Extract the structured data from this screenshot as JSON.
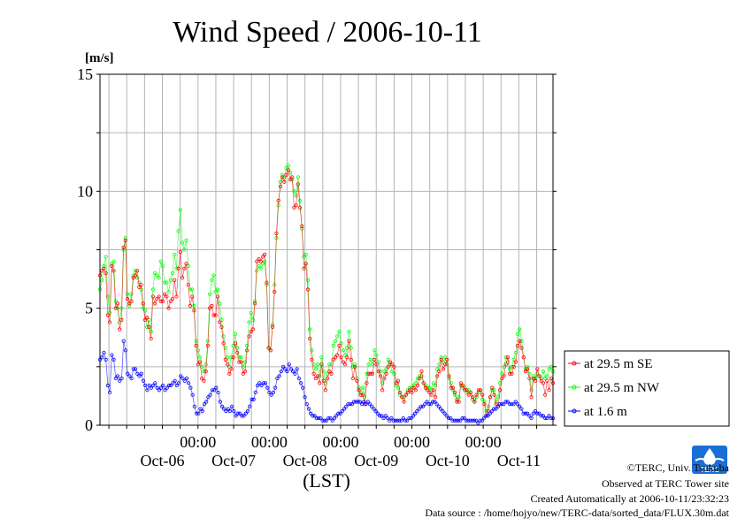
{
  "chart_data": {
    "type": "line",
    "title": "Wind Speed / 2006-10-11",
    "ylabel": "[m/s]",
    "xlabel": "(LST)",
    "ylim": [
      0,
      15
    ],
    "yticks": [
      0,
      5,
      10,
      15
    ],
    "xlim": [
      "2006-10-05 15:00",
      "2006-10-11 23:30"
    ],
    "x_time_labels": [
      "00:00",
      "00:00",
      "00:00",
      "00:00",
      "00:00"
    ],
    "x_day_labels": [
      "Oct-06",
      "Oct-07",
      "Oct-08",
      "Oct-09",
      "Oct-10",
      "Oct-11"
    ],
    "grid": true,
    "legend_position": "right",
    "series": [
      {
        "name": "at 29.5 m SE",
        "color": "#ff0000",
        "values": [
          6.4,
          6.6,
          6.7,
          6.5,
          4.7,
          4.4,
          6.8,
          6.6,
          5.0,
          5.2,
          4.1,
          4.5,
          7.6,
          7.9,
          5.4,
          5.2,
          5.3,
          6.3,
          6.4,
          6.6,
          5.9,
          6.0,
          5.2,
          4.5,
          4.6,
          4.2,
          3.7,
          5.5,
          5.2,
          5.4,
          5.5,
          5.3,
          5.3,
          5.6,
          5.5,
          5.0,
          5.3,
          5.4,
          6.2,
          5.5,
          6.7,
          7.4,
          6.3,
          6.7,
          6.9,
          6.0,
          5.1,
          5.5,
          4.9,
          3.4,
          2.6,
          2.7,
          2.0,
          1.9,
          2.3,
          3.4,
          5.0,
          5.1,
          4.7,
          4.7,
          5.5,
          4.4,
          4.2,
          3.5,
          2.8,
          2.6,
          2.2,
          2.4,
          2.9,
          3.5,
          3.1,
          2.7,
          2.7,
          2.2,
          2.3,
          3.2,
          3.8,
          4.0,
          4.1,
          5.2,
          7.0,
          7.1,
          7.0,
          7.2,
          7.3,
          6.1,
          3.3,
          3.2,
          4.2,
          5.7,
          8.2,
          9.6,
          10.2,
          10.6,
          10.4,
          10.7,
          10.9,
          10.5,
          10.6,
          9.3,
          9.4,
          10.3,
          9.3,
          8.5,
          6.7,
          6.9,
          5.8,
          3.7,
          2.8,
          2.2,
          2.0,
          2.1,
          1.8,
          2.6,
          1.9,
          1.5,
          2.0,
          2.3,
          2.2,
          2.8,
          2.9,
          3.0,
          3.4,
          2.9,
          2.7,
          2.6,
          2.9,
          3.6,
          2.8,
          2.0,
          2.5,
          1.9,
          1.5,
          1.3,
          1.3,
          0.9,
          1.8,
          2.2,
          2.2,
          2.2,
          2.8,
          2.6,
          2.3,
          2.1,
          1.5,
          2.0,
          2.2,
          2.5,
          2.7,
          2.6,
          2.5,
          1.8,
          1.9,
          1.4,
          1.2,
          1.0,
          1.3,
          1.4,
          1.5,
          1.4,
          1.6,
          1.5,
          1.7,
          2.0,
          2.3,
          1.8,
          1.6,
          1.5,
          1.4,
          1.3,
          1.5,
          1.2,
          2.1,
          2.3,
          2.8,
          2.4,
          2.6,
          2.8,
          2.1,
          1.6,
          1.6,
          1.4,
          1.0,
          1.0,
          1.8,
          1.7,
          1.5,
          1.5,
          1.3,
          1.4,
          1.2,
          1.0,
          1.3,
          1.5,
          1.5,
          1.3,
          0.9,
          0.4,
          0.6,
          1.2,
          1.6,
          1.3,
          0.9,
          0.8,
          1.5,
          2.0,
          2.1,
          2.6,
          2.9,
          2.2,
          2.2,
          2.5,
          2.7,
          3.4,
          3.6,
          3.3,
          2.9,
          2.3,
          2.4,
          2.0,
          1.2,
          2.0,
          1.9,
          2.4,
          2.1,
          1.9,
          1.8,
          1.3,
          1.9,
          1.5,
          2.0,
          1.8
        ]
      },
      {
        "name": "at 29.5 m NW",
        "color": "#00ff00",
        "values": [
          5.8,
          6.2,
          6.8,
          7.2,
          5.5,
          4.8,
          6.9,
          7.0,
          5.3,
          5.0,
          4.4,
          5.0,
          7.5,
          8.0,
          5.6,
          5.1,
          5.6,
          6.4,
          6.6,
          6.3,
          6.1,
          5.8,
          5.0,
          4.9,
          4.2,
          4.5,
          4.0,
          5.8,
          6.5,
          6.4,
          6.3,
          7.0,
          6.8,
          6.1,
          6.1,
          5.7,
          6.2,
          6.5,
          7.3,
          6.7,
          8.3,
          9.2,
          7.8,
          7.5,
          7.9,
          6.8,
          5.8,
          5.8,
          5.1,
          3.6,
          3.2,
          2.9,
          2.5,
          2.3,
          2.6,
          3.6,
          5.6,
          6.2,
          6.4,
          5.7,
          5.8,
          5.2,
          4.5,
          3.8,
          3.3,
          2.9,
          2.5,
          2.9,
          3.4,
          3.9,
          3.3,
          2.9,
          2.9,
          2.5,
          2.7,
          3.4,
          4.4,
          4.8,
          4.5,
          5.3,
          6.6,
          6.8,
          6.7,
          6.9,
          7.0,
          6.0,
          3.3,
          3.2,
          4.3,
          6.0,
          8.0,
          9.4,
          10.4,
          10.7,
          10.6,
          11.0,
          11.1,
          10.8,
          10.5,
          10.0,
          9.8,
          10.6,
          9.6,
          8.4,
          7.2,
          7.3,
          6.2,
          4.1,
          3.2,
          2.6,
          2.4,
          2.6,
          2.1,
          2.9,
          2.3,
          1.8,
          2.2,
          2.6,
          2.6,
          3.4,
          3.6,
          3.8,
          4.0,
          3.5,
          3.2,
          3.0,
          3.3,
          4.0,
          3.3,
          2.5,
          2.6,
          2.0,
          1.6,
          1.4,
          1.6,
          1.2,
          2.2,
          2.6,
          2.8,
          2.6,
          3.2,
          3.0,
          2.7,
          2.3,
          1.8,
          2.3,
          2.4,
          2.8,
          2.6,
          2.3,
          2.2,
          1.7,
          1.6,
          1.3,
          1.2,
          1.2,
          1.3,
          1.5,
          1.6,
          1.6,
          1.7,
          1.8,
          2.0,
          2.1,
          2.1,
          1.8,
          1.7,
          1.6,
          1.6,
          1.5,
          1.8,
          1.7,
          2.4,
          2.6,
          2.9,
          2.7,
          2.9,
          2.6,
          2.0,
          1.8,
          1.5,
          1.3,
          1.1,
          1.2,
          1.7,
          1.6,
          1.6,
          1.4,
          1.5,
          1.4,
          1.1,
          1.0,
          1.2,
          1.4,
          1.5,
          1.1,
          1.0,
          0.6,
          0.8,
          1.2,
          1.5,
          1.5,
          1.0,
          1.2,
          1.8,
          2.2,
          2.5,
          2.9,
          2.7,
          2.4,
          2.5,
          2.8,
          3.1,
          3.9,
          4.1,
          3.6,
          2.9,
          2.4,
          2.5,
          2.2,
          1.5,
          2.1,
          2.0,
          2.2,
          2.1,
          2.0,
          2.3,
          2.0,
          2.1,
          2.4,
          2.5,
          2.3
        ]
      },
      {
        "name": "at 1.6 m",
        "color": "#0000ff",
        "values": [
          2.8,
          2.9,
          3.1,
          2.8,
          1.7,
          1.4,
          3.0,
          2.8,
          2.0,
          2.1,
          1.9,
          2.0,
          3.6,
          3.2,
          2.2,
          2.1,
          2.0,
          2.4,
          2.4,
          2.2,
          2.1,
          2.2,
          1.9,
          1.7,
          1.5,
          1.7,
          1.6,
          1.7,
          1.8,
          1.6,
          1.5,
          1.6,
          1.7,
          1.5,
          1.6,
          1.7,
          1.7,
          1.8,
          1.9,
          1.7,
          1.8,
          2.1,
          2.0,
          1.9,
          2.0,
          1.8,
          1.6,
          1.3,
          0.8,
          0.5,
          0.5,
          0.7,
          0.6,
          0.9,
          1.0,
          1.2,
          1.3,
          1.5,
          1.5,
          1.6,
          1.4,
          1.0,
          0.8,
          0.7,
          0.6,
          0.7,
          0.6,
          0.8,
          0.6,
          0.4,
          0.5,
          0.5,
          0.4,
          0.4,
          0.5,
          0.6,
          0.8,
          1.1,
          1.1,
          1.4,
          1.7,
          1.8,
          1.7,
          1.8,
          1.8,
          1.6,
          1.4,
          1.3,
          1.4,
          1.6,
          2.0,
          2.1,
          2.3,
          2.5,
          2.4,
          2.3,
          2.6,
          2.4,
          2.3,
          2.2,
          2.4,
          2.0,
          1.8,
          1.6,
          1.2,
          0.9,
          0.7,
          0.5,
          0.4,
          0.4,
          0.3,
          0.3,
          0.3,
          0.2,
          0.2,
          0.2,
          0.3,
          0.3,
          0.2,
          0.3,
          0.4,
          0.5,
          0.5,
          0.6,
          0.7,
          0.8,
          0.9,
          0.9,
          0.9,
          1.0,
          1.0,
          1.0,
          1.0,
          0.9,
          1.0,
          0.9,
          1.0,
          0.9,
          0.8,
          0.7,
          0.6,
          0.5,
          0.4,
          0.4,
          0.3,
          0.4,
          0.3,
          0.2,
          0.3,
          0.2,
          0.2,
          0.2,
          0.2,
          0.2,
          0.3,
          0.2,
          0.2,
          0.3,
          0.3,
          0.4,
          0.5,
          0.6,
          0.7,
          0.8,
          0.8,
          0.9,
          1.0,
          0.9,
          0.9,
          1.0,
          1.0,
          0.9,
          0.8,
          0.7,
          0.6,
          0.5,
          0.4,
          0.3,
          0.3,
          0.2,
          0.2,
          0.2,
          0.2,
          0.2,
          0.3,
          0.3,
          0.2,
          0.2,
          0.2,
          0.2,
          0.2,
          0.2,
          0.1,
          0.2,
          0.2,
          0.3,
          0.4,
          0.4,
          0.5,
          0.6,
          0.7,
          0.7,
          0.8,
          0.9,
          0.9,
          0.9,
          1.0,
          1.0,
          0.9,
          0.9,
          0.9,
          1.0,
          0.9,
          0.8,
          0.7,
          0.5,
          0.5,
          0.5,
          0.4,
          0.3,
          0.5,
          0.6,
          0.5,
          0.5,
          0.4,
          0.4,
          0.3,
          0.3,
          0.4,
          0.3,
          0.3
        ]
      }
    ]
  },
  "credits": [
    "©TERC, Univ. Tsukuba",
    "Observed at TERC Tower site",
    "Created Automatically at 2006-10-11/23:32:23",
    "Data source : /home/hojyo/new/TERC-data/sorted_data/FLUX.30m.dat"
  ],
  "logo": {
    "name": "terc-logo",
    "text": "TERC",
    "color": "#1a6fd6"
  }
}
